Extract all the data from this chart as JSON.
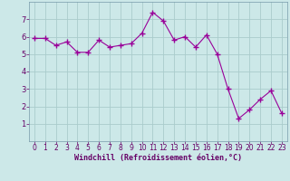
{
  "x": [
    0,
    1,
    2,
    3,
    4,
    5,
    6,
    7,
    8,
    9,
    10,
    11,
    12,
    13,
    14,
    15,
    16,
    17,
    18,
    19,
    20,
    21,
    22,
    23
  ],
  "y": [
    5.9,
    5.9,
    5.5,
    5.7,
    5.1,
    5.1,
    5.8,
    5.4,
    5.5,
    5.6,
    6.2,
    7.4,
    6.9,
    5.8,
    6.0,
    5.4,
    6.1,
    5.0,
    3.0,
    1.3,
    1.8,
    2.4,
    2.9,
    1.6
  ],
  "line_color": "#990099",
  "marker": "+",
  "marker_size": 4,
  "bg_color": "#cce8e8",
  "grid_color": "#aacccc",
  "xlabel": "Windchill (Refroidissement éolien,°C)",
  "xlabel_color": "#660066",
  "tick_color": "#660066",
  "spine_color": "#7799aa",
  "ylim": [
    0,
    8
  ],
  "xlim": [
    -0.5,
    23.5
  ],
  "yticks": [
    1,
    2,
    3,
    4,
    5,
    6,
    7
  ],
  "xticks": [
    0,
    1,
    2,
    3,
    4,
    5,
    6,
    7,
    8,
    9,
    10,
    11,
    12,
    13,
    14,
    15,
    16,
    17,
    18,
    19,
    20,
    21,
    22,
    23
  ],
  "tick_fontsize": 5.5,
  "xlabel_fontsize": 6.0
}
